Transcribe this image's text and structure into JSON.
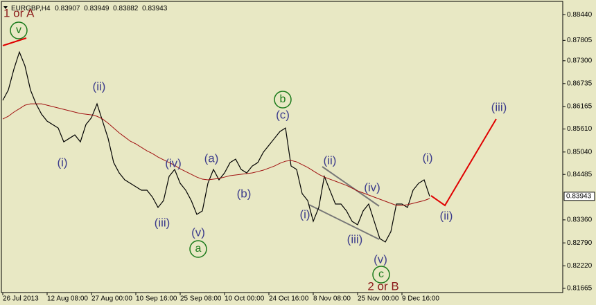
{
  "chart_data": {
    "type": "line",
    "title": "EURGBP,H4",
    "ohlc": [
      0.83907,
      0.83949,
      0.83882,
      0.83943
    ],
    "categories": [
      "26 Jul 2013",
      null,
      null,
      null,
      null,
      null,
      null,
      null,
      "12 Aug 08:00",
      null,
      null,
      null,
      null,
      null,
      null,
      null,
      "27 Aug 00:00",
      null,
      null,
      null,
      null,
      null,
      null,
      null,
      "10 Sep 16:00",
      null,
      null,
      null,
      null,
      null,
      null,
      null,
      "25 Sep 08:00",
      null,
      null,
      null,
      null,
      null,
      null,
      null,
      "10 Oct 00:00",
      null,
      null,
      null,
      null,
      null,
      null,
      null,
      "24 Oct 16:00",
      null,
      null,
      null,
      null,
      null,
      null,
      null,
      "8 Nov 08:00",
      null,
      null,
      null,
      null,
      null,
      null,
      null,
      "25 Nov 00:00",
      null,
      null,
      null,
      null,
      null,
      null,
      null,
      "9 Dec 16:00",
      null,
      null,
      null,
      null,
      null
    ],
    "series": [
      {
        "color": "#000000",
        "values": [
          0.86319,
          0.86575,
          0.87088,
          0.87516,
          0.87174,
          0.86575,
          0.86233,
          0.85976,
          0.85805,
          0.8572,
          0.85634,
          0.85292,
          0.85378,
          0.85463,
          0.85292,
          0.8572,
          0.85891,
          0.86233,
          0.85805,
          0.85378,
          0.84779,
          0.84522,
          0.84351,
          0.84265,
          0.8418,
          0.84094,
          0.84094,
          0.83923,
          0.83667,
          0.83838,
          0.84437,
          0.84608,
          0.84265,
          0.84094,
          0.83838,
          0.83496,
          0.83581,
          0.84265,
          0.84608,
          0.84351,
          0.84522,
          0.84779,
          0.84864,
          0.84608,
          0.84522,
          0.84693,
          0.84779,
          0.85035,
          0.85206,
          0.85378,
          0.85549,
          0.85634,
          0.84693,
          0.84608,
          0.84009,
          0.83838,
          0.83324,
          0.83667,
          0.84437,
          0.84094,
          0.83752,
          0.83752,
          0.83581,
          0.83324,
          0.83239,
          0.83581,
          0.83752,
          0.83324,
          0.82897,
          0.82811,
          0.83068,
          0.83752,
          0.83752,
          0.83667,
          0.84094,
          0.84265,
          0.84351,
          0.83943
        ]
      },
      {
        "color": "#a01010",
        "values": [
          0.85857,
          0.85925,
          0.86028,
          0.86113,
          0.86199,
          0.86233,
          0.86233,
          0.86233,
          0.86199,
          0.86164,
          0.8613,
          0.86096,
          0.86062,
          0.86028,
          0.85993,
          0.85976,
          0.85959,
          0.85925,
          0.85857,
          0.85754,
          0.85634,
          0.85514,
          0.85412,
          0.85309,
          0.85241,
          0.85155,
          0.8507,
          0.85001,
          0.84916,
          0.84847,
          0.84779,
          0.8471,
          0.84625,
          0.84556,
          0.84488,
          0.84419,
          0.84368,
          0.84351,
          0.84368,
          0.84385,
          0.84419,
          0.84454,
          0.84471,
          0.84488,
          0.84505,
          0.84522,
          0.84556,
          0.84591,
          0.84642,
          0.84693,
          0.84762,
          0.84813,
          0.8483,
          0.84796,
          0.84727,
          0.84659,
          0.84573,
          0.84488,
          0.84419,
          0.84368,
          0.84317,
          0.84265,
          0.84214,
          0.84146,
          0.84077,
          0.84026,
          0.83975,
          0.83923,
          0.83872,
          0.83821,
          0.83769,
          0.83718,
          0.83718,
          0.83735,
          0.83769,
          0.83804,
          0.83838,
          0.83889
        ]
      }
    ],
    "ylim": [
      0.8156,
      0.8877
    ],
    "yticks": [
      {
        "value": 0.8844,
        "label": "0.88440"
      },
      0.87805,
      {
        "value": 0.873,
        "label": "0.87300"
      },
      0.86735,
      0.86165,
      {
        "value": 0.8561,
        "label": "0.85610"
      },
      {
        "value": 0.8504,
        "label": "0.85040"
      },
      0.84485,
      {
        "value": 0.8336,
        "label": "0.83360"
      },
      {
        "value": 0.8279,
        "label": "0.82790"
      },
      {
        "value": 0.8222,
        "label": "0.82220"
      },
      0.81665
    ],
    "last_price": 0.83943,
    "grid": false,
    "annotations": [
      "1 or A",
      "v",
      "(ii)",
      "(i)",
      "(iv)",
      "(iii)",
      "(v)",
      "a",
      "(a)",
      "(b)",
      "b",
      "(c)",
      "(i)",
      "(ii)",
      "(iv)",
      "(iii)",
      "(v)",
      "c",
      "2 or B",
      "(i)",
      "(ii)",
      "(iii)"
    ]
  }
}
